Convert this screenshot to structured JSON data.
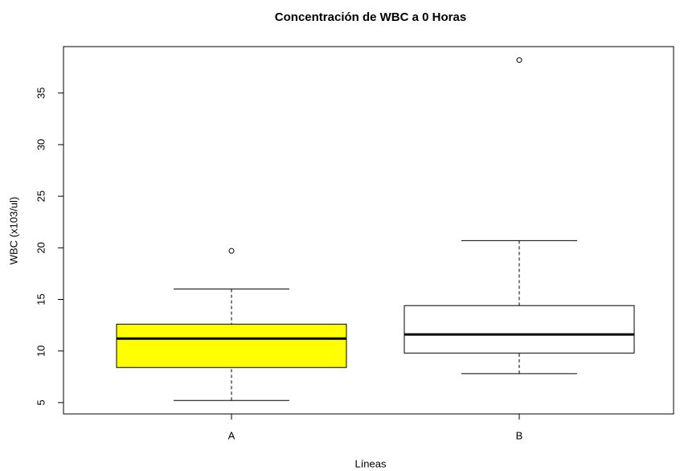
{
  "chart_data": {
    "type": "box",
    "title": "Concentración de WBC a 0 Horas",
    "xlabel": "Líneas",
    "ylabel": "WBC (x103/ul)",
    "categories": [
      "A",
      "B"
    ],
    "boxes": [
      {
        "whisker_low": 5.2,
        "q1": 8.4,
        "median": 11.2,
        "q3": 12.6,
        "whisker_high": 16.0,
        "outliers": [
          19.7
        ]
      },
      {
        "whisker_low": 7.8,
        "q1": 9.8,
        "median": 11.6,
        "q3": 14.4,
        "whisker_high": 20.7,
        "outliers": [
          38.2
        ]
      }
    ],
    "colors": [
      "#ffff00",
      "#ffffff"
    ],
    "ylim": [
      3.9,
      39.5
    ],
    "yticks": [
      5,
      10,
      15,
      20,
      25,
      30,
      35
    ]
  }
}
